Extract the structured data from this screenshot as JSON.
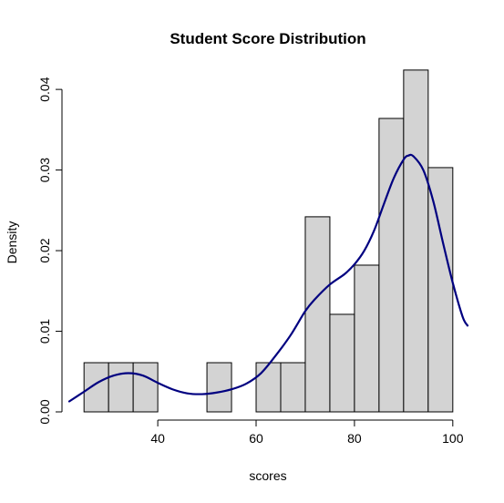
{
  "chart_data": {
    "type": "histogram",
    "title": "Student Score Distribution",
    "xlabel": "scores",
    "ylabel": "Density",
    "xlim": [
      22,
      103
    ],
    "ylim": [
      0,
      0.0425
    ],
    "x_ticks": [
      40,
      60,
      80,
      100
    ],
    "x_tick_labels": [
      "40",
      "60",
      "80",
      "100"
    ],
    "y_ticks": [
      0,
      0.01,
      0.02,
      0.03,
      0.04
    ],
    "y_tick_labels": [
      "0.00",
      "0.01",
      "0.02",
      "0.03",
      "0.04"
    ],
    "bins": [
      {
        "x0": 25,
        "x1": 30,
        "density": 0.0061
      },
      {
        "x0": 30,
        "x1": 35,
        "density": 0.0061
      },
      {
        "x0": 35,
        "x1": 40,
        "density": 0.0061
      },
      {
        "x0": 40,
        "x1": 45,
        "density": 0.0
      },
      {
        "x0": 45,
        "x1": 50,
        "density": 0.0
      },
      {
        "x0": 50,
        "x1": 55,
        "density": 0.0061
      },
      {
        "x0": 55,
        "x1": 60,
        "density": 0.0
      },
      {
        "x0": 60,
        "x1": 65,
        "density": 0.0061
      },
      {
        "x0": 65,
        "x1": 70,
        "density": 0.0061
      },
      {
        "x0": 70,
        "x1": 75,
        "density": 0.0242
      },
      {
        "x0": 75,
        "x1": 80,
        "density": 0.0121
      },
      {
        "x0": 80,
        "x1": 85,
        "density": 0.0182
      },
      {
        "x0": 85,
        "x1": 90,
        "density": 0.0364
      },
      {
        "x0": 90,
        "x1": 95,
        "density": 0.0424
      },
      {
        "x0": 95,
        "x1": 100,
        "density": 0.0303
      }
    ],
    "density_curve": {
      "x": [
        22,
        25,
        28,
        31,
        34,
        37,
        40,
        43,
        46,
        49,
        52,
        55,
        58,
        61,
        64,
        67,
        70,
        72,
        75,
        78,
        80,
        82,
        84,
        86,
        88,
        90,
        91,
        92,
        94,
        96,
        98,
        100,
        102,
        103
      ],
      "y": [
        0.0013,
        0.0025,
        0.0037,
        0.0045,
        0.0048,
        0.0045,
        0.0036,
        0.0028,
        0.0023,
        0.0022,
        0.0024,
        0.0028,
        0.0035,
        0.0048,
        0.007,
        0.0095,
        0.0125,
        0.014,
        0.0158,
        0.0171,
        0.0183,
        0.02,
        0.0225,
        0.0258,
        0.029,
        0.0313,
        0.0318,
        0.0317,
        0.03,
        0.0262,
        0.021,
        0.016,
        0.0118,
        0.0107
      ]
    },
    "colors": {
      "bar_fill": "#d3d3d3",
      "bar_stroke": "#000000",
      "density_line": "#000080"
    },
    "grid": false,
    "legend": "none"
  }
}
